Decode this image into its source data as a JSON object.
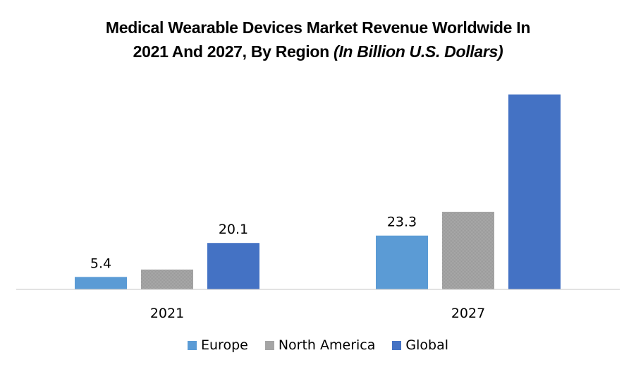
{
  "chart_data": {
    "type": "bar",
    "title": "Medical Wearable Devices Market Revenue Worldwide In 2021 And 2027, By Region",
    "title_line1": "Medical Wearable Devices Market Revenue Worldwide In",
    "title_line2_plain": "2021 And 2027, By Region ",
    "title_line2_italic": "(In Billion  U.S. Dollars)",
    "xlabel": "",
    "ylabel": "",
    "categories": [
      "2021",
      "2027"
    ],
    "series": [
      {
        "name": "Europe",
        "color": "#5b9bd5",
        "values": [
          5.4,
          23.3
        ],
        "labels": [
          "5.4",
          "23.3"
        ]
      },
      {
        "name": "North America",
        "color": "#a5a5a5",
        "values": [
          8.6,
          33.6
        ],
        "labels": [
          null,
          null
        ]
      },
      {
        "name": "Global",
        "color": "#4472c4",
        "values": [
          20.1,
          84.4
        ],
        "labels": [
          "20.1",
          null
        ]
      }
    ],
    "ylim": [
      0,
      88
    ],
    "grid": false,
    "y_axis_visible": false,
    "legend_position": "bottom"
  }
}
